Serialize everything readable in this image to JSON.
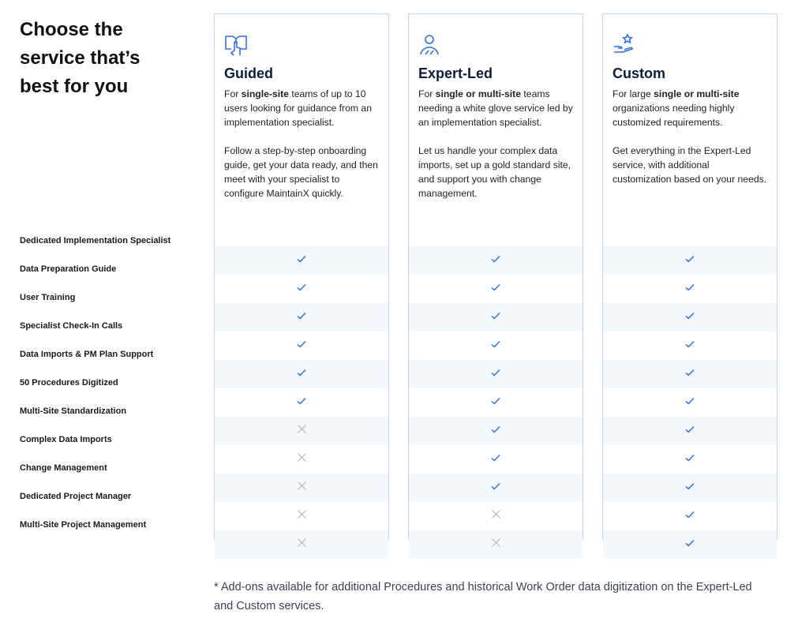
{
  "title": "Choose the service that’s best for you",
  "features": [
    "Dedicated Implementation Specialist",
    "Data Preparation Guide",
    "User Training",
    "Specialist Check-In Calls",
    "Data Imports & PM Plan Support",
    "50 Procedures Digitized",
    "Multi-Site Standardization",
    "Complex Data Imports",
    "Change Management",
    "Dedicated Project Manager",
    "Multi-Site Project Management"
  ],
  "plans": [
    {
      "name": "Guided",
      "icon": "book-hand-icon",
      "desc1_pre": "For ",
      "desc1_bold": "single-site",
      "desc1_post": " teams of up to 10 users looking for guidance from an implementation specialist.",
      "desc2": "Follow a step-by-step onboarding guide, get your data ready, and then meet with your specialist to configure MaintainX quickly.",
      "included": [
        true,
        true,
        true,
        true,
        true,
        true,
        false,
        false,
        false,
        false,
        false
      ]
    },
    {
      "name": "Expert-Led",
      "icon": "person-icon",
      "desc1_pre": "For ",
      "desc1_bold": "single or multi-site",
      "desc1_post": " teams needing a white glove service led by an implementation specialist.",
      "desc2": "Let us handle your complex data imports, set up a gold standard site, and support you with change management.",
      "included": [
        true,
        true,
        true,
        true,
        true,
        true,
        true,
        true,
        true,
        false,
        false
      ]
    },
    {
      "name": "Custom",
      "icon": "hand-star-icon",
      "desc1_pre": "For large ",
      "desc1_bold": "single or multi-site",
      "desc1_post": " organizations needing highly customized requirements.",
      "desc2": "Get everything in the Expert-Led service, with additional customization based on your needs.",
      "included": [
        true,
        true,
        true,
        true,
        true,
        true,
        true,
        true,
        true,
        true,
        true
      ]
    }
  ],
  "footnote": "* Add-ons available for additional Procedures and historical Work Order data digitization on the Expert-Led and Custom services.",
  "colors": {
    "accent": "#2f6fec",
    "cross": "#b5b9c0",
    "border": "#c5d6f5",
    "shade": "#f3f8fd"
  }
}
